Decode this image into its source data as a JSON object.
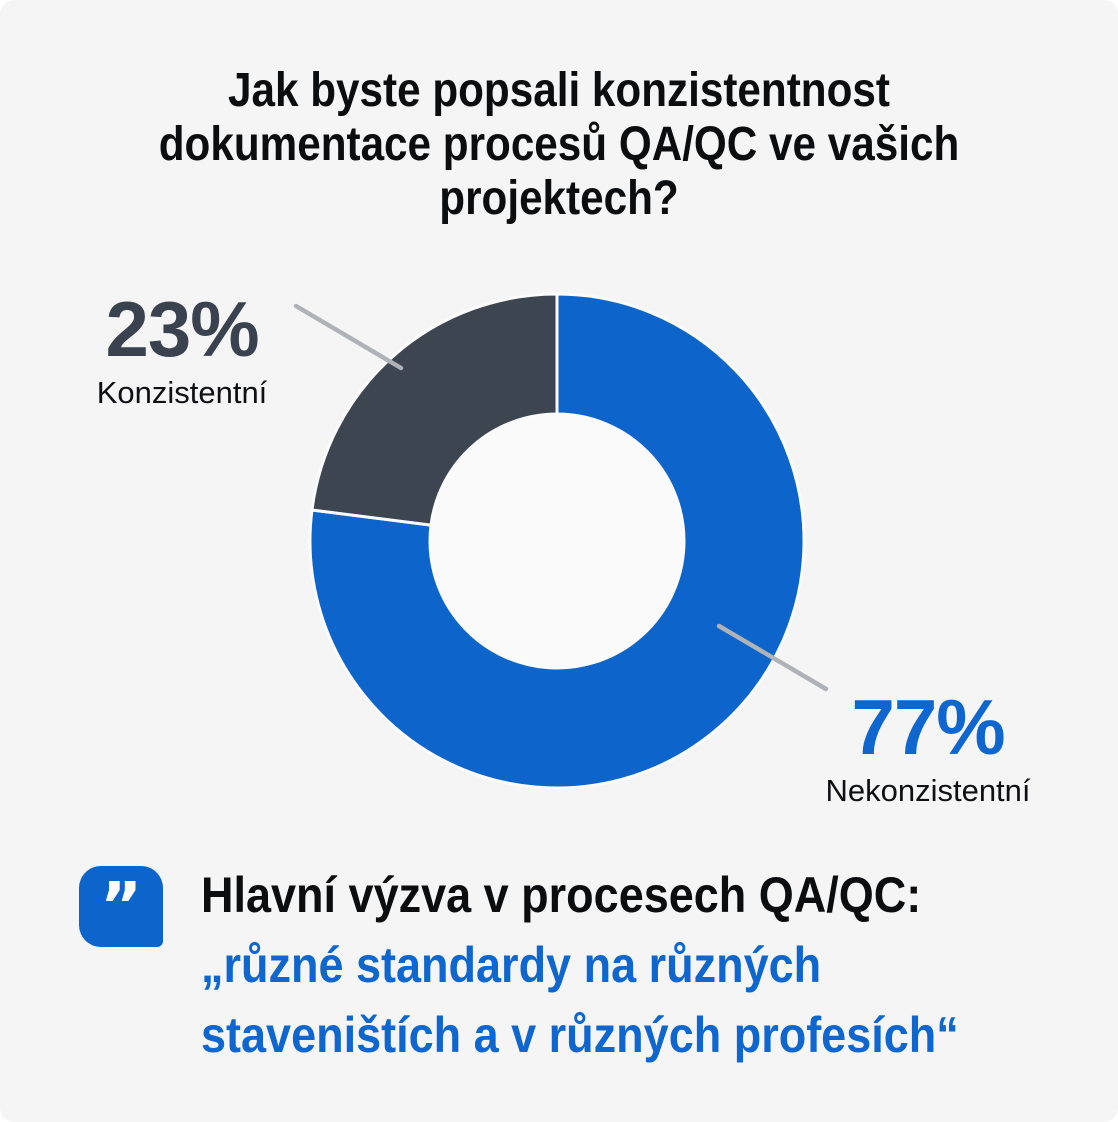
{
  "title": {
    "full": "Jak byste popsali konzistentnost dokumentace procesů QA/QC ve vašich projektech?",
    "lines": [
      "Jak byste popsali konzistentnost",
      "dokumentace procesů QA/QC ve vašich",
      "projektech?"
    ]
  },
  "chart_data": {
    "type": "pie",
    "subtype": "donut",
    "title": "Jak byste popsali konzistentnost dokumentace procesů QA/QC ve vašich projektech?",
    "start_angle_deg": 0,
    "direction": "clockwise",
    "segments": [
      {
        "label": "Nekonzistentní",
        "value": 77,
        "display": "77%",
        "color": "#0D65CB"
      },
      {
        "label": "Konzistentní",
        "value": 23,
        "display": "23%",
        "color": "#3C4550"
      }
    ],
    "hole_color": "#FAFAFB",
    "stroke_color": "#FBFBFC",
    "leader_line_color": "#AFB2B7"
  },
  "quote": {
    "mark": "”",
    "heading": "Hlavní výzva v procesech QA/QC:",
    "lines": [
      "„různé standardy na různých",
      "staveništích a v různých profesích“"
    ],
    "full_quote": "„různé standardy na různých staveništích a v různých profesích“"
  },
  "colors": {
    "card_background": "#F5F5F6",
    "accent_blue": "#0D65CB",
    "text_blue": "#0E66CE",
    "dark_slate": "#3C4550",
    "pct_dark_text": "#39424E",
    "leader_gray": "#AFB2B7",
    "title_black": "#0B0D0F"
  }
}
